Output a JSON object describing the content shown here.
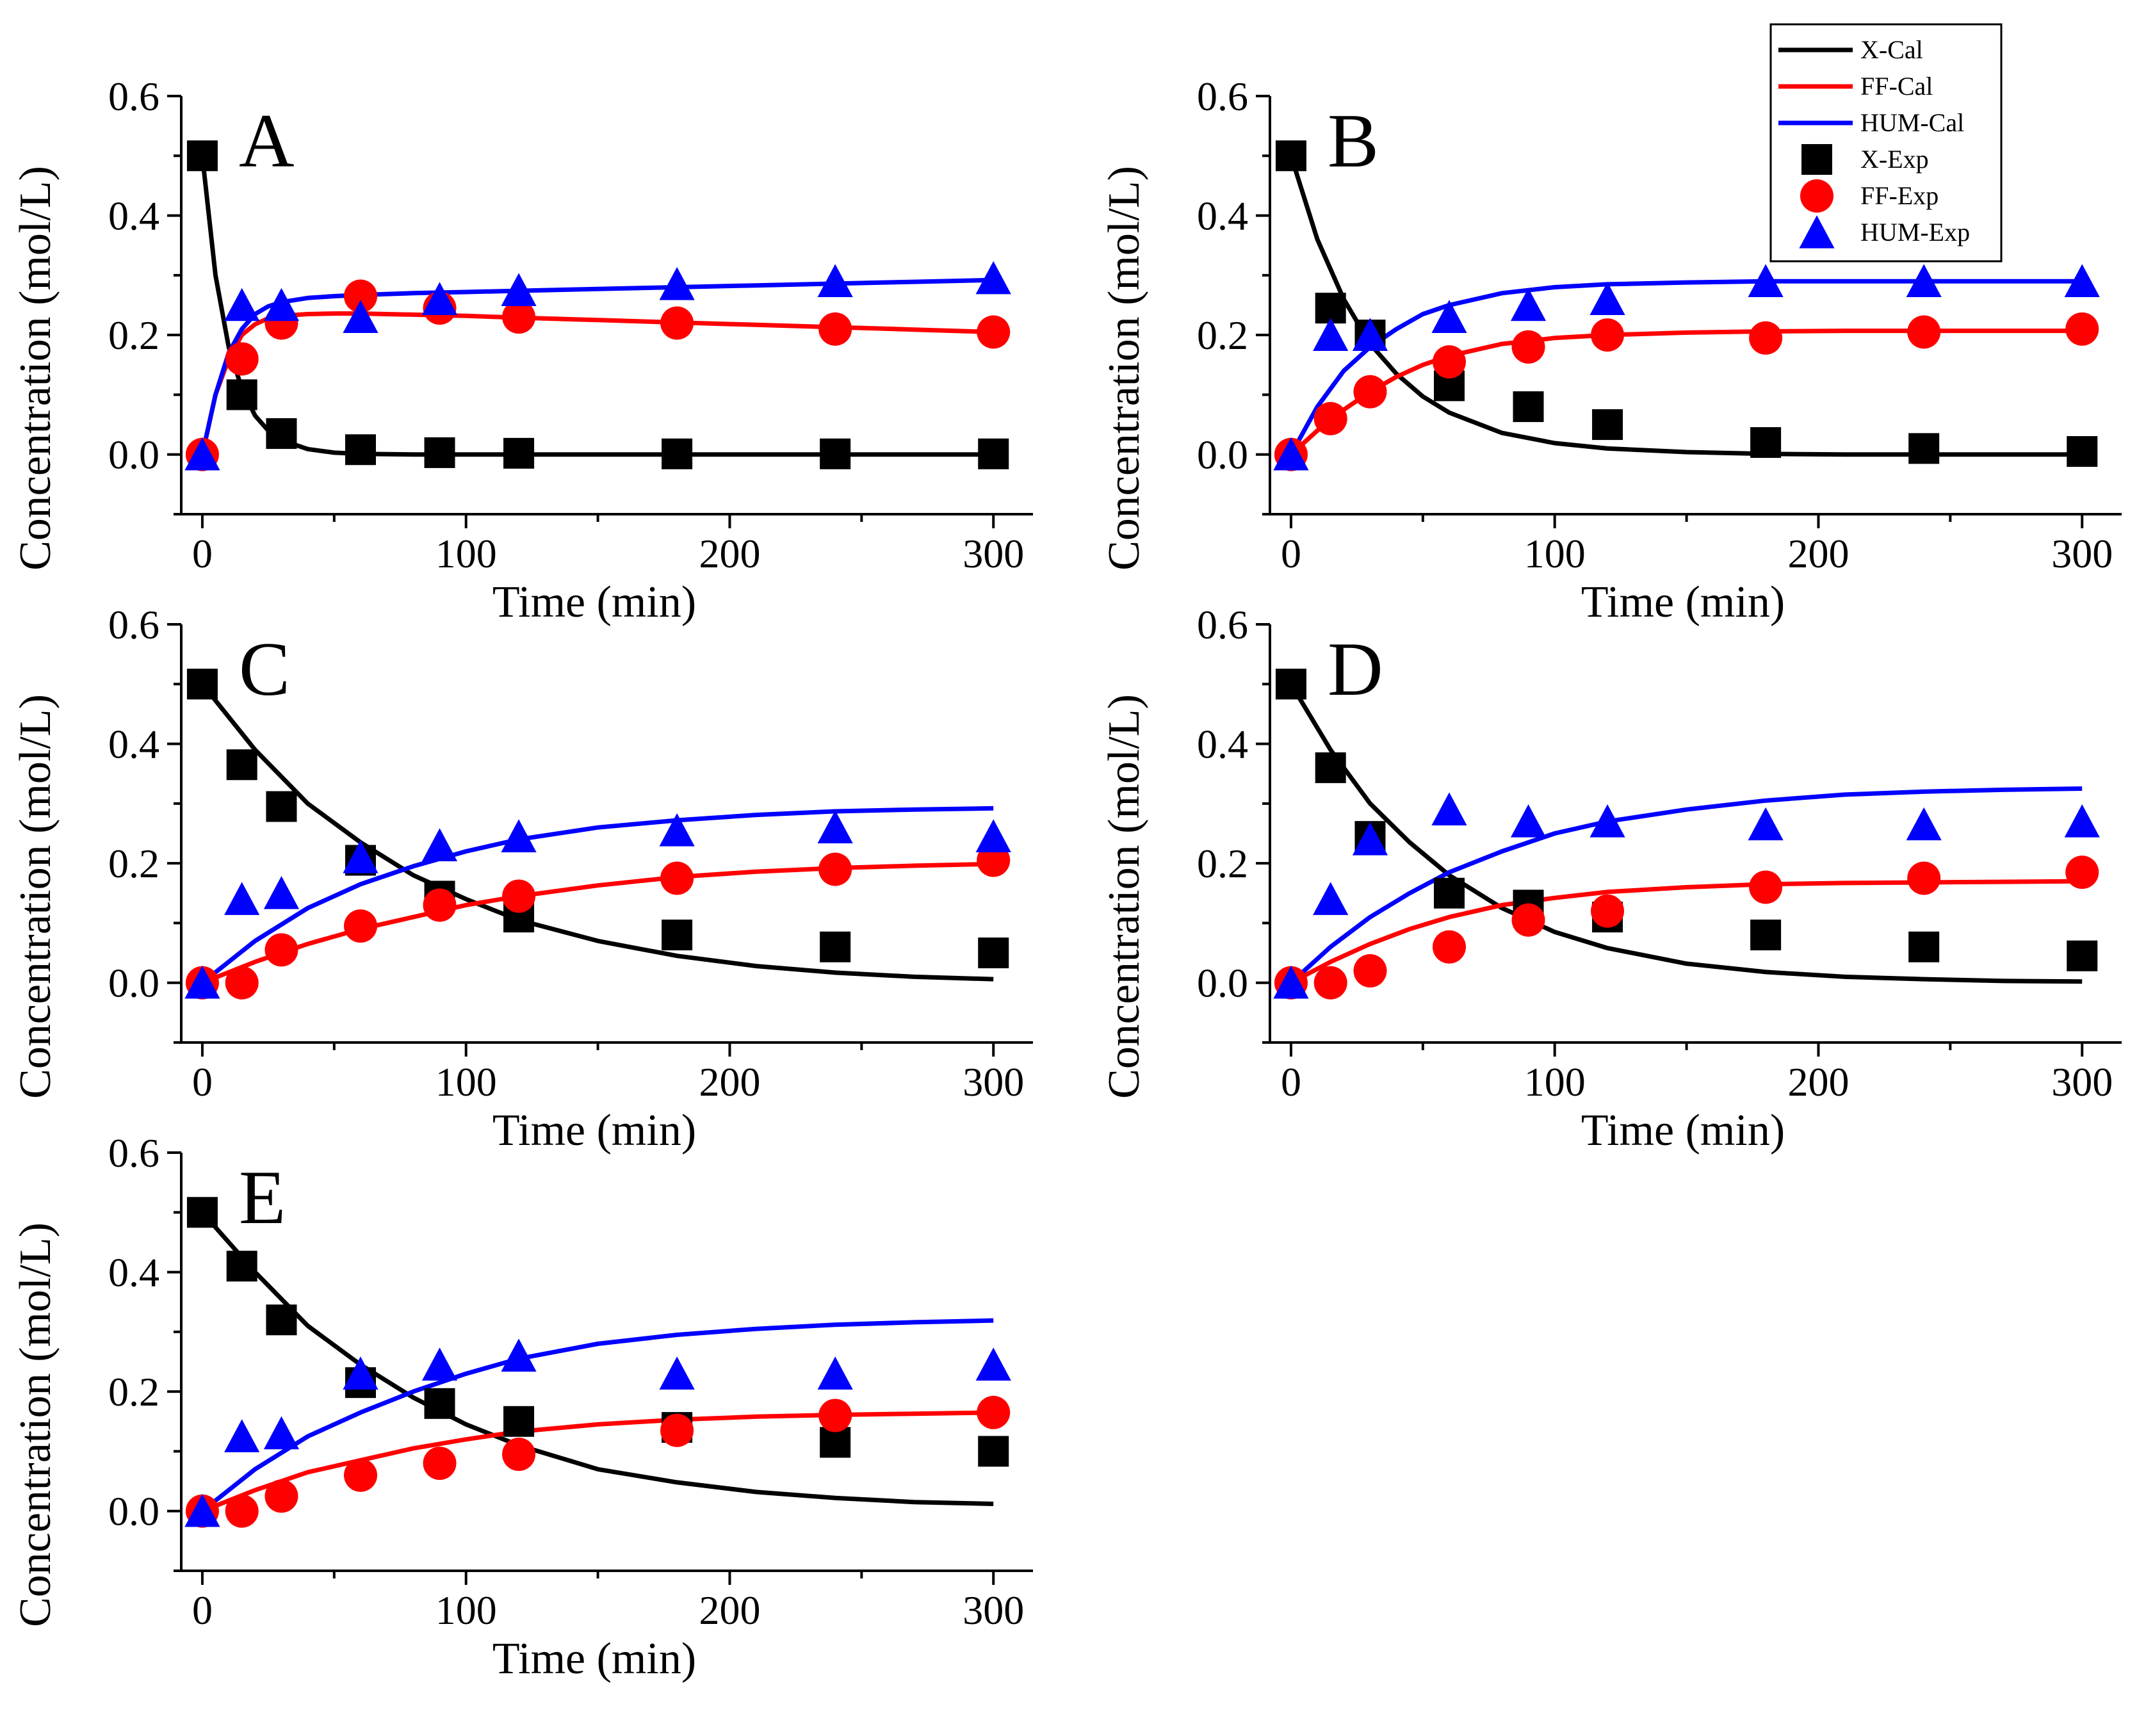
{
  "chart_data": {
    "type": "line+scatter",
    "colors": {
      "X": "#000000",
      "FF": "#ff0000",
      "HUM": "#0000ff"
    },
    "xlabel": "Time (min)",
    "ylabel": "Concentration (mol/L)",
    "xlim": [
      -8,
      315
    ],
    "ylim": [
      -0.1,
      0.6
    ],
    "xticks": [
      "0",
      "100",
      "200",
      "300"
    ],
    "yticks": [
      "0.0",
      "0.2",
      "0.4",
      "0.6"
    ],
    "xtick_values": [
      0,
      100,
      200,
      300
    ],
    "ytick_values": [
      0.0,
      0.2,
      0.4,
      0.6
    ],
    "legend": {
      "placement": "top-right",
      "entries": [
        {
          "label": "X-Cal",
          "kind": "line",
          "series": "X"
        },
        {
          "label": "FF-Cal",
          "kind": "line",
          "series": "FF"
        },
        {
          "label": "HUM-Cal",
          "kind": "line",
          "series": "HUM"
        },
        {
          "label": "X-Exp",
          "kind": "square",
          "series": "X"
        },
        {
          "label": "FF-Exp",
          "kind": "circle",
          "series": "FF"
        },
        {
          "label": "HUM-Exp",
          "kind": "triangle",
          "series": "HUM"
        }
      ]
    },
    "panels": [
      {
        "label": "A",
        "exp_time": [
          0,
          15,
          30,
          60,
          90,
          120,
          180,
          240,
          300
        ],
        "exp": {
          "X": [
            0.5,
            0.1,
            0.035,
            0.008,
            0.003,
            0.002,
            0.001,
            0.001,
            0.001
          ],
          "FF": [
            0.0,
            0.16,
            0.22,
            0.265,
            0.245,
            0.23,
            0.22,
            0.21,
            0.205
          ],
          "HUM": [
            0.0,
            0.25,
            0.25,
            0.23,
            0.26,
            0.275,
            0.285,
            0.29,
            0.295
          ]
        },
        "cal_time": [
          0,
          5,
          10,
          15,
          20,
          25,
          30,
          40,
          50,
          60,
          80,
          100,
          120,
          150,
          180,
          210,
          240,
          270,
          300
        ],
        "cal": {
          "X": [
            0.5,
            0.3,
            0.18,
            0.11,
            0.065,
            0.04,
            0.024,
            0.009,
            0.003,
            0.001,
            0.0,
            0.0,
            0.0,
            0.0,
            0.0,
            0.0,
            0.0,
            0.0,
            0.0
          ],
          "FF": [
            0.0,
            0.1,
            0.16,
            0.2,
            0.218,
            0.228,
            0.232,
            0.235,
            0.236,
            0.236,
            0.234,
            0.232,
            0.229,
            0.225,
            0.221,
            0.217,
            0.213,
            0.209,
            0.205
          ],
          "HUM": [
            0.0,
            0.1,
            0.17,
            0.21,
            0.235,
            0.248,
            0.255,
            0.262,
            0.265,
            0.267,
            0.27,
            0.272,
            0.274,
            0.277,
            0.28,
            0.283,
            0.286,
            0.289,
            0.292
          ]
        }
      },
      {
        "label": "B",
        "exp_time": [
          0,
          15,
          30,
          60,
          90,
          120,
          180,
          240,
          300
        ],
        "exp": {
          "X": [
            0.5,
            0.245,
            0.2,
            0.115,
            0.08,
            0.05,
            0.02,
            0.01,
            0.005
          ],
          "FF": [
            0.0,
            0.06,
            0.105,
            0.155,
            0.18,
            0.2,
            0.195,
            0.205,
            0.21
          ],
          "HUM": [
            0.0,
            0.2,
            0.2,
            0.23,
            0.25,
            0.26,
            0.29,
            0.29,
            0.29
          ]
        },
        "cal_time": [
          0,
          10,
          20,
          30,
          40,
          50,
          60,
          80,
          100,
          120,
          150,
          180,
          210,
          240,
          270,
          300
        ],
        "cal": {
          "X": [
            0.5,
            0.36,
            0.26,
            0.185,
            0.135,
            0.097,
            0.07,
            0.036,
            0.019,
            0.01,
            0.004,
            0.001,
            0.0,
            0.0,
            0.0,
            0.0
          ],
          "FF": [
            0.0,
            0.04,
            0.075,
            0.105,
            0.13,
            0.15,
            0.165,
            0.185,
            0.195,
            0.2,
            0.204,
            0.206,
            0.207,
            0.207,
            0.207,
            0.207
          ],
          "HUM": [
            0.0,
            0.08,
            0.14,
            0.18,
            0.21,
            0.235,
            0.25,
            0.27,
            0.28,
            0.285,
            0.288,
            0.29,
            0.29,
            0.29,
            0.29,
            0.29
          ]
        }
      },
      {
        "label": "C",
        "exp_time": [
          0,
          15,
          30,
          60,
          90,
          120,
          180,
          240,
          300
        ],
        "exp": {
          "X": [
            0.5,
            0.365,
            0.295,
            0.205,
            0.145,
            0.11,
            0.08,
            0.06,
            0.05
          ],
          "FF": [
            0.0,
            0.0,
            0.055,
            0.095,
            0.13,
            0.145,
            0.175,
            0.19,
            0.205
          ],
          "HUM": [
            0.0,
            0.14,
            0.15,
            0.21,
            0.23,
            0.245,
            0.255,
            0.26,
            0.245
          ]
        },
        "cal_time": [
          0,
          20,
          40,
          60,
          80,
          100,
          120,
          150,
          180,
          210,
          240,
          270,
          300
        ],
        "cal": {
          "X": [
            0.5,
            0.39,
            0.3,
            0.235,
            0.18,
            0.14,
            0.105,
            0.07,
            0.045,
            0.028,
            0.017,
            0.01,
            0.006
          ],
          "FF": [
            0.0,
            0.035,
            0.065,
            0.09,
            0.11,
            0.13,
            0.145,
            0.163,
            0.177,
            0.186,
            0.192,
            0.196,
            0.199
          ],
          "HUM": [
            0.0,
            0.07,
            0.125,
            0.165,
            0.195,
            0.22,
            0.24,
            0.26,
            0.272,
            0.281,
            0.287,
            0.29,
            0.292
          ]
        }
      },
      {
        "label": "D",
        "exp_time": [
          0,
          15,
          30,
          60,
          90,
          120,
          180,
          240,
          300
        ],
        "exp": {
          "X": [
            0.5,
            0.36,
            0.245,
            0.15,
            0.13,
            0.11,
            0.08,
            0.06,
            0.045
          ],
          "FF": [
            0.0,
            0.0,
            0.02,
            0.06,
            0.105,
            0.12,
            0.16,
            0.175,
            0.185
          ],
          "HUM": [
            0.0,
            0.14,
            0.24,
            0.29,
            0.27,
            0.27,
            0.265,
            0.265,
            0.27
          ]
        },
        "cal_time": [
          0,
          15,
          30,
          45,
          60,
          80,
          100,
          120,
          150,
          180,
          210,
          240,
          270,
          300
        ],
        "cal": {
          "X": [
            0.5,
            0.39,
            0.3,
            0.235,
            0.18,
            0.125,
            0.085,
            0.058,
            0.032,
            0.018,
            0.01,
            0.006,
            0.003,
            0.002
          ],
          "FF": [
            0.0,
            0.035,
            0.065,
            0.09,
            0.11,
            0.13,
            0.142,
            0.152,
            0.16,
            0.165,
            0.167,
            0.168,
            0.169,
            0.17
          ],
          "HUM": [
            0.0,
            0.06,
            0.11,
            0.15,
            0.185,
            0.22,
            0.25,
            0.27,
            0.29,
            0.305,
            0.315,
            0.32,
            0.323,
            0.325
          ]
        }
      },
      {
        "label": "E",
        "exp_time": [
          0,
          15,
          30,
          60,
          90,
          120,
          180,
          240,
          300
        ],
        "exp": {
          "X": [
            0.5,
            0.41,
            0.32,
            0.215,
            0.18,
            0.15,
            0.14,
            0.115,
            0.1
          ],
          "FF": [
            0.0,
            0.0,
            0.025,
            0.06,
            0.08,
            0.095,
            0.135,
            0.16,
            0.165
          ],
          "HUM": [
            0.0,
            0.125,
            0.13,
            0.23,
            0.245,
            0.26,
            0.23,
            0.23,
            0.245
          ]
        },
        "cal_time": [
          0,
          20,
          40,
          60,
          80,
          100,
          120,
          150,
          180,
          210,
          240,
          270,
          300
        ],
        "cal": {
          "X": [
            0.5,
            0.4,
            0.31,
            0.245,
            0.19,
            0.145,
            0.11,
            0.07,
            0.048,
            0.032,
            0.022,
            0.015,
            0.012
          ],
          "FF": [
            0.0,
            0.035,
            0.065,
            0.085,
            0.105,
            0.12,
            0.133,
            0.145,
            0.153,
            0.158,
            0.161,
            0.163,
            0.165
          ],
          "HUM": [
            0.0,
            0.07,
            0.125,
            0.165,
            0.2,
            0.23,
            0.255,
            0.28,
            0.295,
            0.305,
            0.312,
            0.316,
            0.319
          ]
        }
      }
    ]
  }
}
